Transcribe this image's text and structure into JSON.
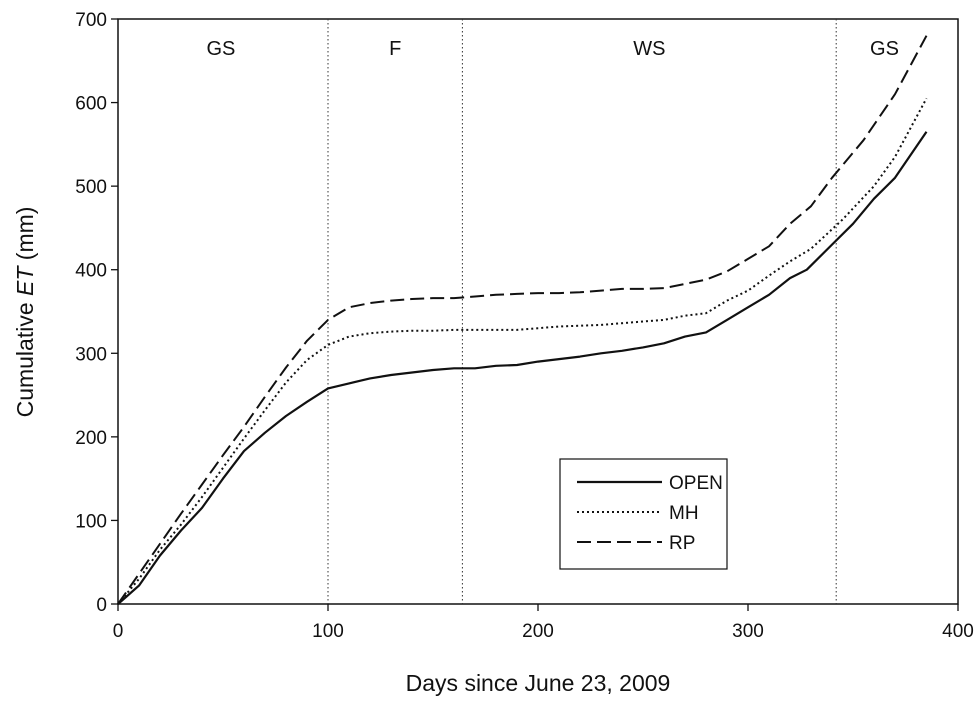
{
  "chart_data": {
    "type": "line",
    "xlabel": "Days since June 23, 2009",
    "ylabel_prefix": "Cumulative ",
    "ylabel_italic": "ET",
    "ylabel_suffix": " (mm)",
    "xlim": [
      0,
      400
    ],
    "ylim": [
      0,
      700
    ],
    "xticks": [
      0,
      100,
      200,
      300,
      400
    ],
    "yticks": [
      0,
      100,
      200,
      300,
      400,
      500,
      600,
      700
    ],
    "grid": false,
    "legend_position": "lower-right",
    "period_boundaries": [
      100,
      164,
      342
    ],
    "periods": [
      {
        "label": "GS",
        "x": 49
      },
      {
        "label": "F",
        "x": 132
      },
      {
        "label": "WS",
        "x": 253
      },
      {
        "label": "GS",
        "x": 365
      }
    ],
    "series": [
      {
        "name": "OPEN",
        "style": "solid",
        "points": [
          [
            0,
            0
          ],
          [
            10,
            22
          ],
          [
            20,
            58
          ],
          [
            30,
            88
          ],
          [
            40,
            115
          ],
          [
            50,
            150
          ],
          [
            60,
            183
          ],
          [
            70,
            205
          ],
          [
            80,
            225
          ],
          [
            90,
            242
          ],
          [
            100,
            258
          ],
          [
            110,
            264
          ],
          [
            120,
            270
          ],
          [
            130,
            274
          ],
          [
            140,
            277
          ],
          [
            150,
            280
          ],
          [
            160,
            282
          ],
          [
            170,
            282
          ],
          [
            180,
            285
          ],
          [
            190,
            286
          ],
          [
            200,
            290
          ],
          [
            210,
            293
          ],
          [
            220,
            296
          ],
          [
            230,
            300
          ],
          [
            240,
            303
          ],
          [
            250,
            307
          ],
          [
            260,
            312
          ],
          [
            270,
            320
          ],
          [
            280,
            325
          ],
          [
            290,
            340
          ],
          [
            300,
            355
          ],
          [
            310,
            370
          ],
          [
            320,
            390
          ],
          [
            328,
            400
          ],
          [
            340,
            430
          ],
          [
            350,
            455
          ],
          [
            360,
            485
          ],
          [
            370,
            510
          ],
          [
            385,
            565
          ]
        ]
      },
      {
        "name": "MH",
        "style": "dotted",
        "points": [
          [
            0,
            0
          ],
          [
            10,
            30
          ],
          [
            20,
            65
          ],
          [
            30,
            95
          ],
          [
            40,
            128
          ],
          [
            50,
            163
          ],
          [
            60,
            198
          ],
          [
            70,
            232
          ],
          [
            80,
            265
          ],
          [
            90,
            292
          ],
          [
            100,
            310
          ],
          [
            110,
            320
          ],
          [
            120,
            324
          ],
          [
            130,
            326
          ],
          [
            140,
            327
          ],
          [
            150,
            327
          ],
          [
            160,
            328
          ],
          [
            170,
            328
          ],
          [
            180,
            328
          ],
          [
            190,
            328
          ],
          [
            200,
            330
          ],
          [
            210,
            332
          ],
          [
            220,
            333
          ],
          [
            230,
            334
          ],
          [
            240,
            336
          ],
          [
            250,
            338
          ],
          [
            260,
            340
          ],
          [
            270,
            345
          ],
          [
            280,
            348
          ],
          [
            290,
            363
          ],
          [
            300,
            375
          ],
          [
            310,
            393
          ],
          [
            320,
            410
          ],
          [
            330,
            425
          ],
          [
            345,
            460
          ],
          [
            360,
            500
          ],
          [
            370,
            535
          ],
          [
            385,
            605
          ]
        ]
      },
      {
        "name": "RP",
        "style": "dashed",
        "points": [
          [
            0,
            0
          ],
          [
            10,
            36
          ],
          [
            20,
            72
          ],
          [
            30,
            108
          ],
          [
            40,
            143
          ],
          [
            50,
            178
          ],
          [
            60,
            212
          ],
          [
            70,
            248
          ],
          [
            80,
            283
          ],
          [
            90,
            315
          ],
          [
            100,
            340
          ],
          [
            110,
            355
          ],
          [
            120,
            360
          ],
          [
            130,
            363
          ],
          [
            140,
            365
          ],
          [
            150,
            366
          ],
          [
            160,
            366
          ],
          [
            170,
            368
          ],
          [
            180,
            370
          ],
          [
            190,
            371
          ],
          [
            200,
            372
          ],
          [
            210,
            372
          ],
          [
            220,
            373
          ],
          [
            230,
            375
          ],
          [
            240,
            377
          ],
          [
            250,
            377
          ],
          [
            260,
            378
          ],
          [
            270,
            383
          ],
          [
            280,
            388
          ],
          [
            290,
            398
          ],
          [
            300,
            413
          ],
          [
            310,
            428
          ],
          [
            320,
            455
          ],
          [
            330,
            476
          ],
          [
            340,
            510
          ],
          [
            355,
            555
          ],
          [
            370,
            610
          ],
          [
            385,
            680
          ]
        ]
      }
    ]
  }
}
